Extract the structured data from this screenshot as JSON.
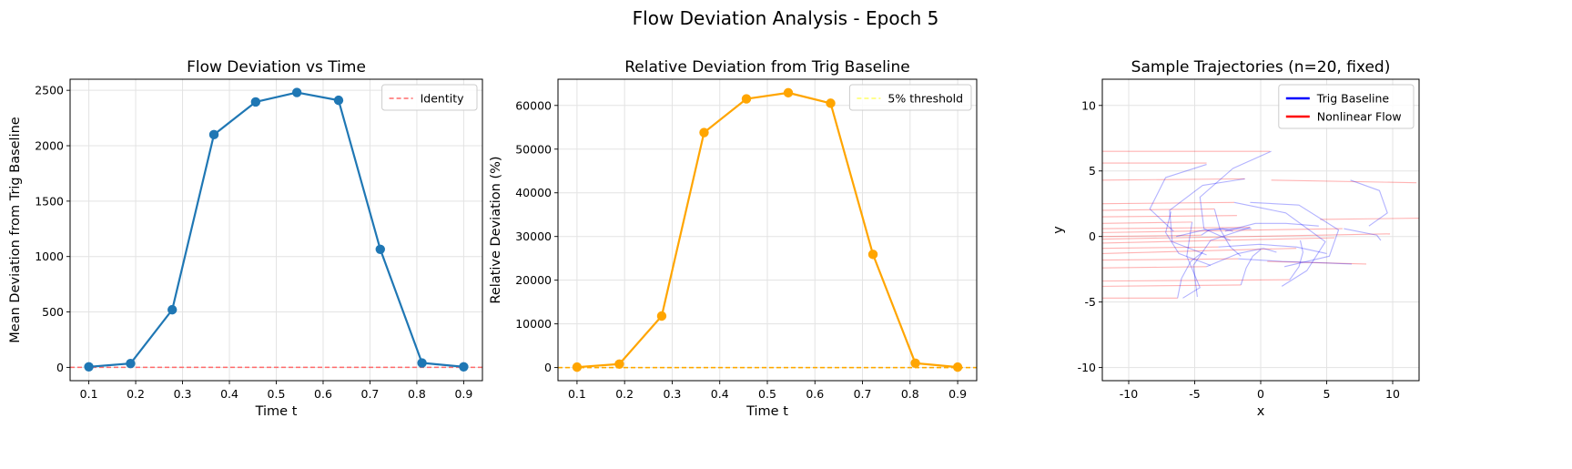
{
  "figure": {
    "suptitle": "Flow Deviation Analysis - Epoch 5"
  },
  "chart_data": [
    {
      "type": "line",
      "title": "Flow Deviation vs Time",
      "xlabel": "Time t",
      "ylabel": "Mean Deviation from Trig Baseline",
      "xlim": [
        0.06,
        0.94
      ],
      "ylim": [
        -120,
        2600
      ],
      "xticks": [
        0.1,
        0.2,
        0.3,
        0.4,
        0.5,
        0.6,
        0.7,
        0.8,
        0.9
      ],
      "yticks": [
        0,
        500,
        1000,
        1500,
        2000,
        2500
      ],
      "grid": true,
      "legend_position": "upper right",
      "series": [
        {
          "color": "#1f77b4",
          "x": [
            0.1,
            0.189,
            0.278,
            0.367,
            0.456,
            0.544,
            0.633,
            0.722,
            0.811,
            0.9
          ],
          "y": [
            5,
            35,
            520,
            2100,
            2395,
            2480,
            2410,
            1065,
            40,
            5
          ]
        }
      ],
      "reference_lines": [
        {
          "name": "Identity",
          "y": 0,
          "color": "#ff6b6b",
          "style": "dashed"
        }
      ]
    },
    {
      "type": "line",
      "title": "Relative Deviation from Trig Baseline",
      "xlabel": "Time t",
      "ylabel": "Relative Deviation (%)",
      "xlim": [
        0.06,
        0.94
      ],
      "ylim": [
        -3000,
        66000
      ],
      "xticks": [
        0.1,
        0.2,
        0.3,
        0.4,
        0.5,
        0.6,
        0.7,
        0.8,
        0.9
      ],
      "yticks": [
        0,
        10000,
        20000,
        30000,
        40000,
        50000,
        60000
      ],
      "grid": true,
      "legend_position": "upper right",
      "series": [
        {
          "color": "#ffa500",
          "x": [
            0.1,
            0.189,
            0.278,
            0.367,
            0.456,
            0.544,
            0.633,
            0.722,
            0.811,
            0.9
          ],
          "y": [
            100,
            800,
            11800,
            53800,
            61500,
            62900,
            60500,
            25900,
            1000,
            100
          ]
        }
      ],
      "reference_lines": [
        {
          "name": "5% threshold",
          "y": 5,
          "color": "#ffff66",
          "style": "dashed"
        },
        {
          "name": "",
          "y": 0,
          "color": "#ffa500",
          "style": "dashed"
        }
      ]
    },
    {
      "type": "line",
      "title": "Sample Trajectories (n=20, fixed)",
      "xlabel": "x",
      "ylabel": "y",
      "xlim": [
        -12,
        12
      ],
      "ylim": [
        -11,
        12
      ],
      "xticks": [
        -10,
        -5,
        0,
        5,
        10
      ],
      "yticks": [
        -10,
        -5,
        0,
        5,
        10
      ],
      "grid": true,
      "legend_position": "upper right",
      "legend": [
        {
          "name": "Trig Baseline",
          "color": "#0000ff"
        },
        {
          "name": "Nonlinear Flow",
          "color": "#ff0000"
        }
      ],
      "trajectories": {
        "nonlinear_flow": [
          [
            [
              -12,
              6.5
            ],
            [
              0.7,
              6.5
            ]
          ],
          [
            [
              -12,
              5.6
            ],
            [
              -4.1,
              5.6
            ]
          ],
          [
            [
              -12,
              4.3
            ],
            [
              -1.2,
              4.4
            ]
          ],
          [
            [
              0.8,
              4.3
            ],
            [
              11.8,
              4.1
            ]
          ],
          [
            [
              -12,
              2.5
            ],
            [
              -2,
              2.6
            ]
          ],
          [
            [
              -12,
              2.0
            ],
            [
              -3.5,
              2.1
            ]
          ],
          [
            [
              -12,
              1.5
            ],
            [
              -1.8,
              1.6
            ]
          ],
          [
            [
              -12,
              1.0
            ],
            [
              -5.2,
              1.1
            ]
          ],
          [
            [
              -12,
              0.6
            ],
            [
              -0.8,
              0.7
            ]
          ],
          [
            [
              -12,
              0.3
            ],
            [
              6.2,
              0.6
            ]
          ],
          [
            [
              -12,
              0.0
            ],
            [
              -4.5,
              0.1
            ]
          ],
          [
            [
              -12,
              -0.2
            ],
            [
              9.8,
              0.2
            ]
          ],
          [
            [
              -12,
              -0.5
            ],
            [
              5.6,
              -0.1
            ]
          ],
          [
            [
              -12,
              -0.9
            ],
            [
              -3.2,
              -0.8
            ]
          ],
          [
            [
              -12,
              -1.3
            ],
            [
              2.7,
              -0.9
            ]
          ],
          [
            [
              -12,
              -1.8
            ],
            [
              -1.7,
              -1.7
            ]
          ],
          [
            [
              -12,
              -2.4
            ],
            [
              -4.1,
              -2.3
            ]
          ],
          [
            [
              -12,
              -3.4
            ],
            [
              2.2,
              -3.3
            ]
          ],
          [
            [
              -12,
              -3.8
            ],
            [
              -1.5,
              -3.7
            ]
          ],
          [
            [
              -12,
              -4.7
            ],
            [
              -6.3,
              -4.7
            ]
          ],
          [
            [
              4.5,
              1.3
            ],
            [
              12,
              1.4
            ]
          ],
          [
            [
              0.5,
              -1.9
            ],
            [
              8.0,
              -2.1
            ]
          ]
        ],
        "trig_baseline": [
          [
            [
              0.8,
              6.5
            ],
            [
              -2.1,
              5.2
            ],
            [
              -4.6,
              3.0
            ],
            [
              -4.3,
              0.6
            ],
            [
              -2.3,
              -0.3
            ]
          ],
          [
            [
              -1.2,
              4.4
            ],
            [
              -4.4,
              3.9
            ],
            [
              -6.9,
              2.0
            ],
            [
              -6.7,
              -0.4
            ],
            [
              -4.1,
              -1.4
            ]
          ],
          [
            [
              -4.1,
              5.5
            ],
            [
              -7.2,
              4.5
            ],
            [
              -8.4,
              2.1
            ],
            [
              -6.6,
              0.4
            ]
          ],
          [
            [
              -0.8,
              2.6
            ],
            [
              2.9,
              2.4
            ],
            [
              5.9,
              0.5
            ],
            [
              5.2,
              -1.5
            ],
            [
              1.8,
              -2.3
            ]
          ],
          [
            [
              -2.0,
              2.6
            ],
            [
              1.9,
              1.8
            ],
            [
              4.9,
              -0.4
            ],
            [
              3.5,
              -2.6
            ],
            [
              1.6,
              -3.8
            ]
          ],
          [
            [
              6.8,
              4.3
            ],
            [
              9.0,
              3.5
            ],
            [
              9.6,
              1.8
            ],
            [
              8.2,
              0.8
            ]
          ],
          [
            [
              -5.2,
              1.1
            ],
            [
              -5.6,
              -1.5
            ],
            [
              -4.6,
              -3.9
            ],
            [
              -5.9,
              -4.7
            ]
          ],
          [
            [
              -0.8,
              0.7
            ],
            [
              -3.8,
              -0.3
            ],
            [
              -5.1,
              -2.2
            ],
            [
              -4.8,
              -4.6
            ]
          ],
          [
            [
              -6.4,
              0.0
            ],
            [
              -4.3,
              0.5
            ],
            [
              -2.5,
              0.6
            ],
            [
              -0.7,
              0.6
            ]
          ],
          [
            [
              -2.7,
              0.4
            ],
            [
              -0.4,
              1.0
            ],
            [
              1.9,
              1.0
            ],
            [
              4.4,
              0.8
            ]
          ],
          [
            [
              6.3,
              0.6
            ],
            [
              8.8,
              0.1
            ],
            [
              9.1,
              -0.3
            ]
          ],
          [
            [
              -3.2,
              -0.8
            ],
            [
              -0.1,
              -0.6
            ],
            [
              2.7,
              -0.8
            ],
            [
              5.0,
              -1.3
            ]
          ],
          [
            [
              -1.7,
              -1.7
            ],
            [
              1.6,
              -1.9
            ],
            [
              4.4,
              -2.0
            ],
            [
              6.9,
              -2.1
            ]
          ],
          [
            [
              -4.1,
              -2.3
            ],
            [
              -1.7,
              -1.3
            ],
            [
              0.2,
              -0.9
            ],
            [
              1.2,
              -1.2
            ]
          ],
          [
            [
              -6.8,
              1.9
            ],
            [
              -7.2,
              0.3
            ],
            [
              -6.2,
              -1.3
            ],
            [
              -3.8,
              -2.2
            ]
          ],
          [
            [
              -3.5,
              2.1
            ],
            [
              -3.1,
              0.6
            ],
            [
              -2.3,
              -0.8
            ],
            [
              -1.5,
              -1.5
            ]
          ],
          [
            [
              -4.5,
              0.1
            ],
            [
              -3.9,
              0.5
            ],
            [
              -2.9,
              0.6
            ],
            [
              -2.1,
              0.4
            ]
          ],
          [
            [
              2.2,
              -3.3
            ],
            [
              2.9,
              -2.3
            ],
            [
              3.2,
              -1.2
            ],
            [
              3.0,
              -0.3
            ]
          ],
          [
            [
              -1.5,
              -3.7
            ],
            [
              -1.1,
              -2.4
            ],
            [
              -0.6,
              -1.5
            ],
            [
              0.0,
              -1.0
            ]
          ],
          [
            [
              -6.3,
              -4.7
            ],
            [
              -6.0,
              -3.2
            ],
            [
              -5.3,
              -1.9
            ],
            [
              -4.4,
              -1.2
            ]
          ]
        ]
      }
    }
  ]
}
